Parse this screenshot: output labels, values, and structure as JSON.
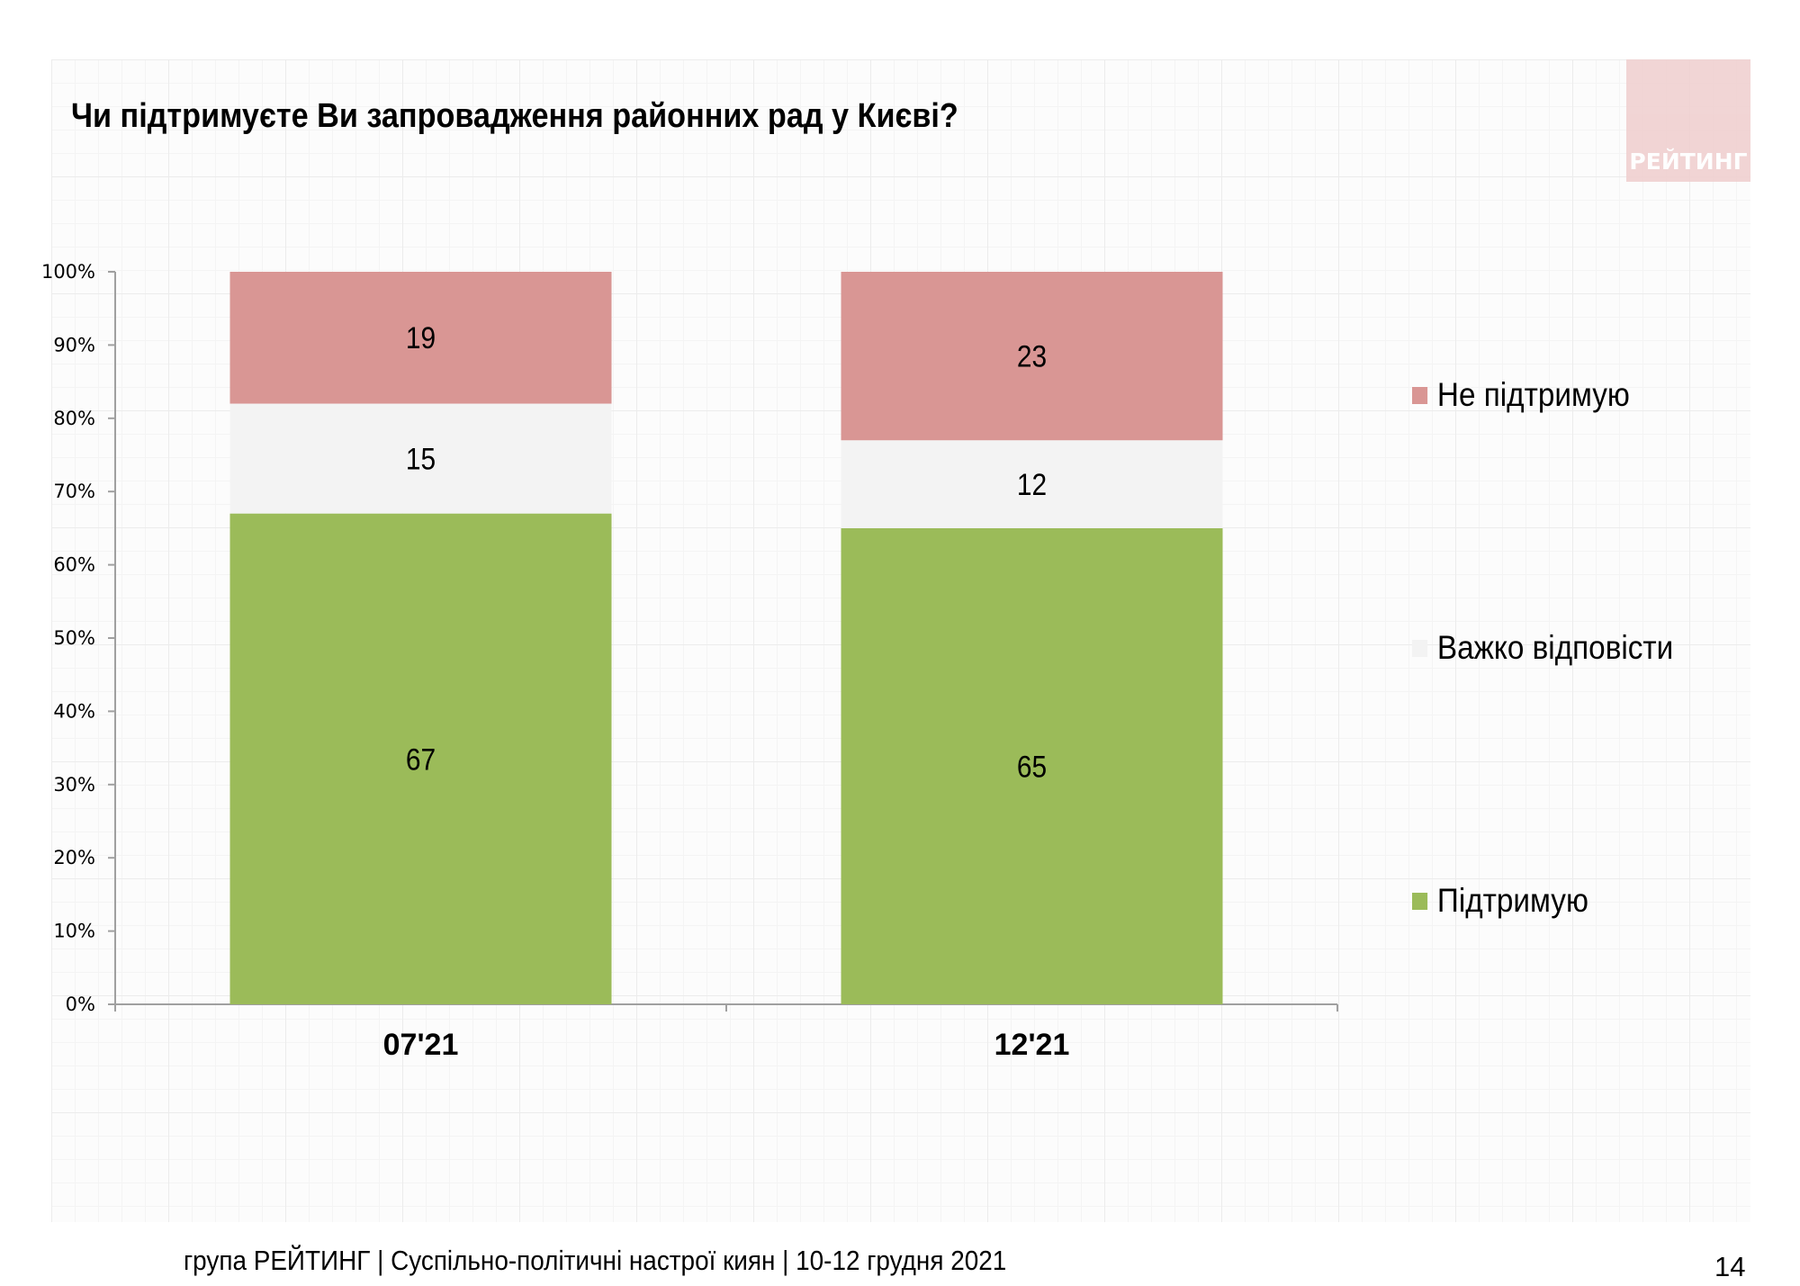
{
  "title": "Чи підтримуєте Ви запровадження районних рад у Києві?",
  "logo_text": "РЕЙТИНГ",
  "footer": "група РЕЙТИНГ | Суспільно-політичні настрої киян | 10-12 грудня 2021",
  "page_number": "14",
  "chart_data": {
    "type": "bar",
    "stacked": true,
    "title": "",
    "xlabel": "",
    "ylabel": "",
    "ylim": [
      0,
      100
    ],
    "yticks": [
      "0%",
      "10%",
      "20%",
      "30%",
      "40%",
      "50%",
      "60%",
      "70%",
      "80%",
      "90%",
      "100%"
    ],
    "categories": [
      "07'21",
      "12'21"
    ],
    "series": [
      {
        "name": "Підтримую",
        "values": [
          67,
          65
        ],
        "color": "#9bbb59"
      },
      {
        "name": "Важко відповісти",
        "values": [
          15,
          12
        ],
        "color": "#f3f3f3"
      },
      {
        "name": "Не підтримую",
        "values": [
          19,
          23
        ],
        "color": "#d99694"
      }
    ],
    "legend": "right",
    "grid": false
  }
}
